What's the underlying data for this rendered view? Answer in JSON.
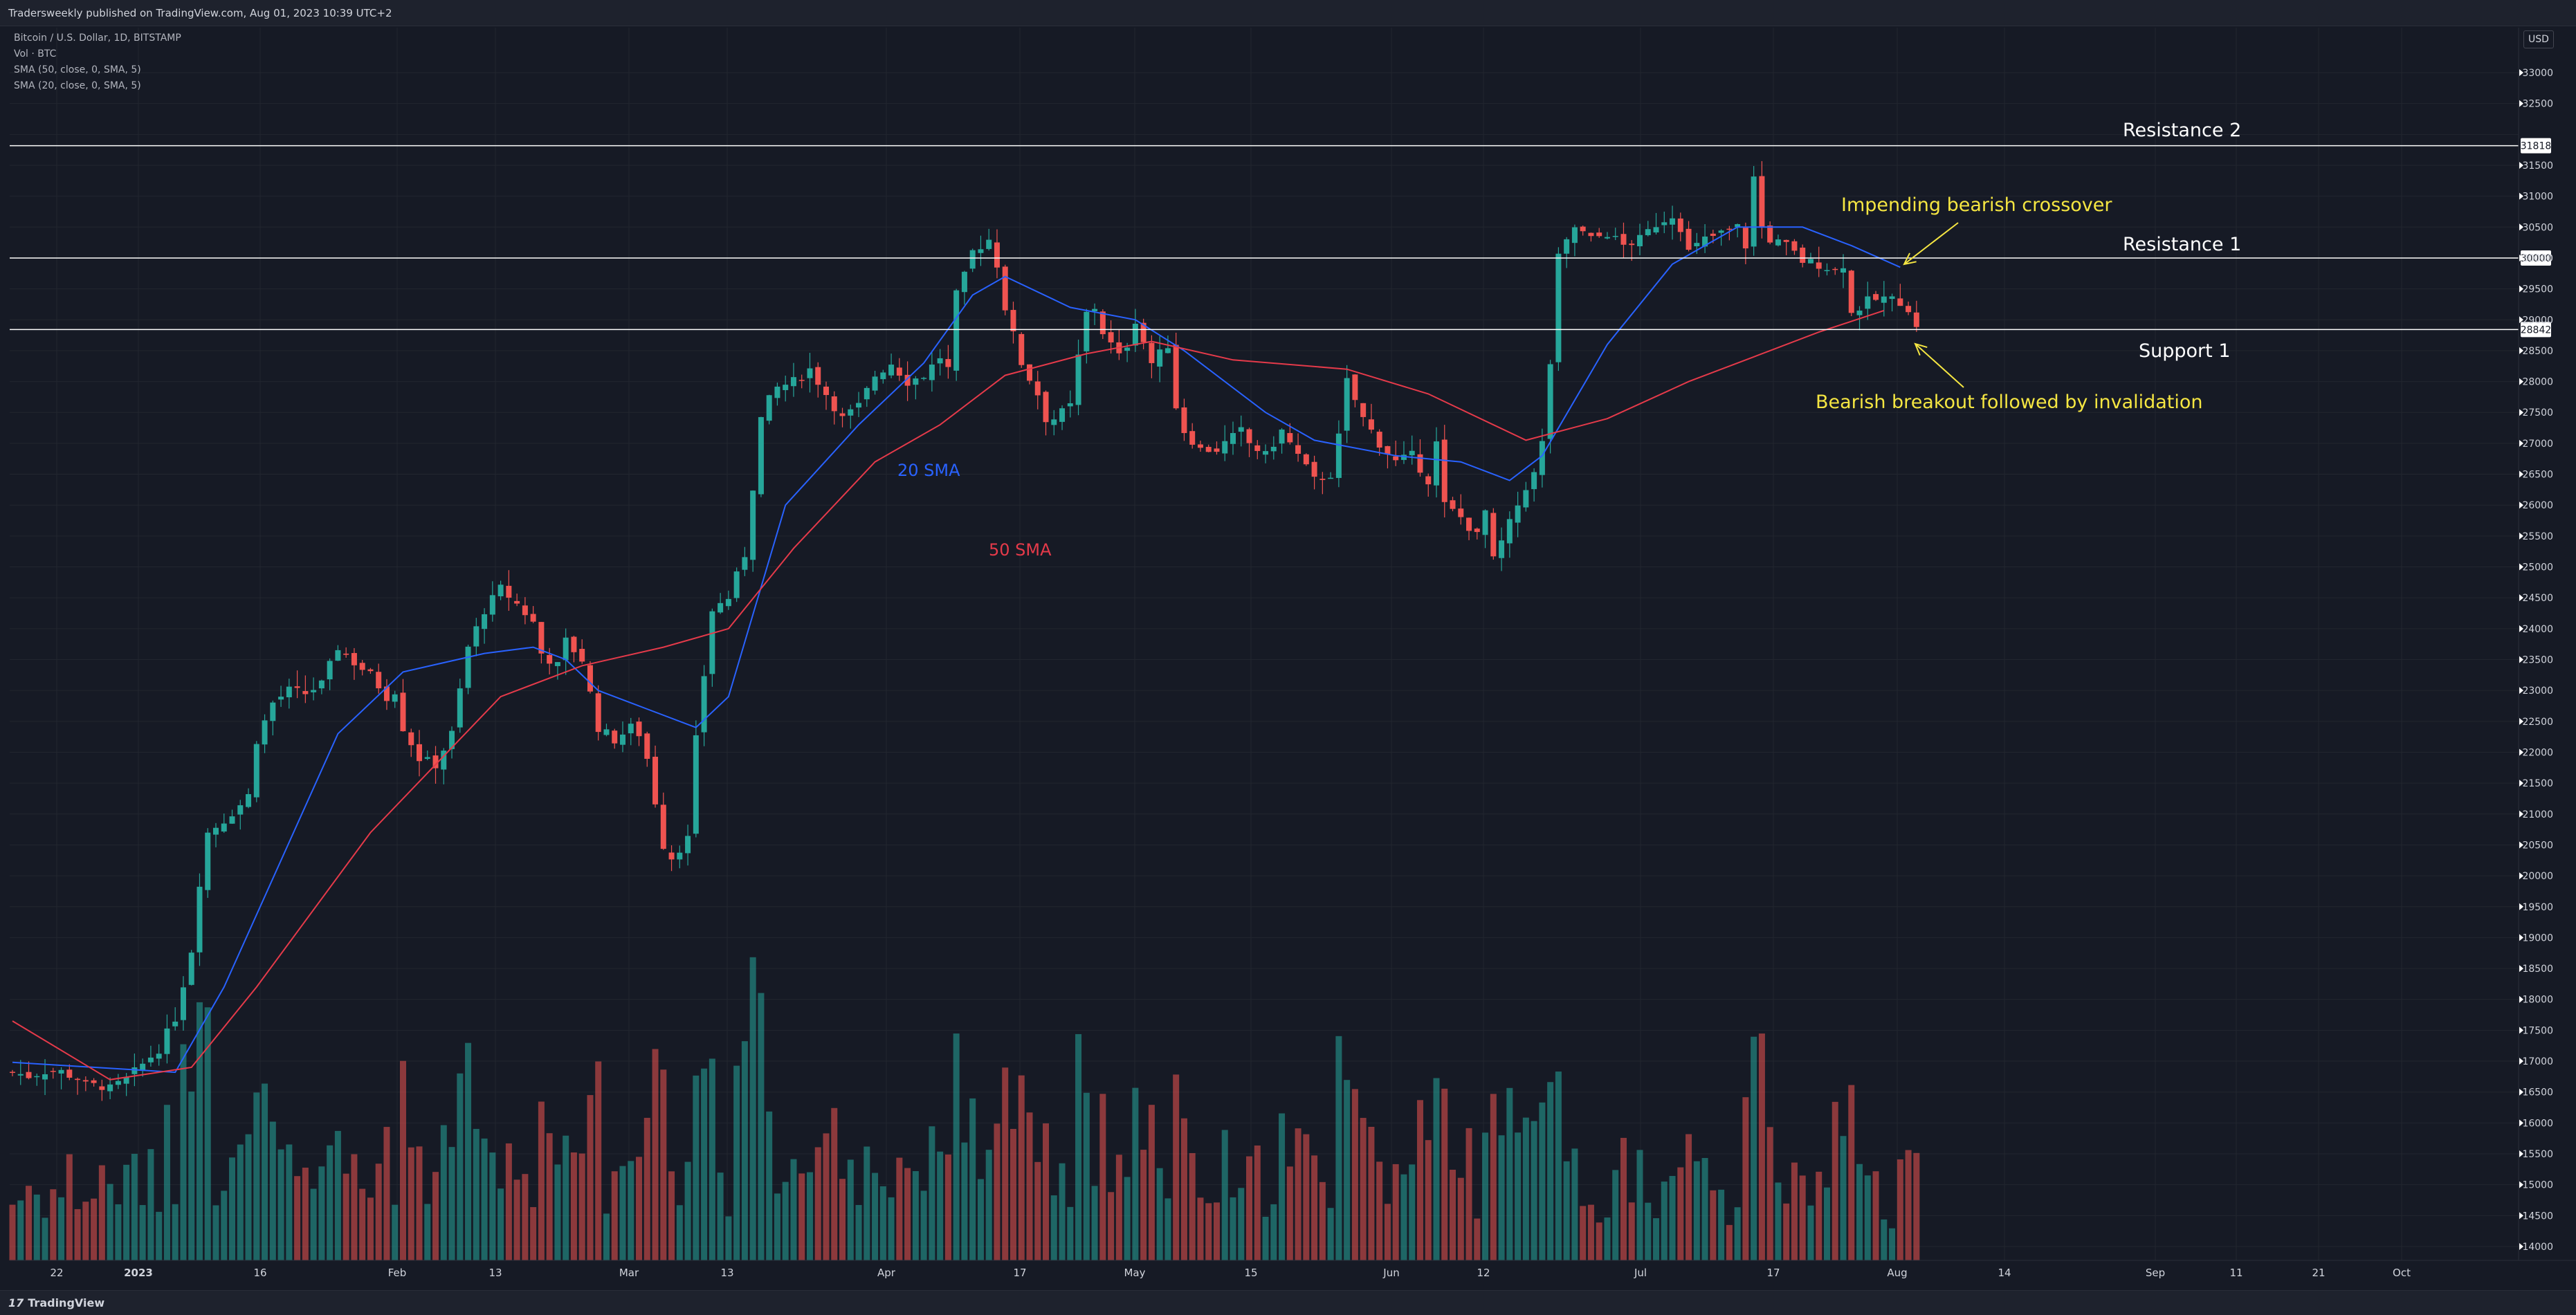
{
  "header": {
    "published": "Tradersweekly published on TradingView.com, Aug 01, 2023 10:39 UTC+2"
  },
  "legend": {
    "symbol": "Bitcoin / U.S. Dollar, 1D, BITSTAMP",
    "volume": "Vol · BTC",
    "sma50": "SMA (50, close, 0, SMA, 5)",
    "sma20": "SMA (20, close, 0, SMA, 5)"
  },
  "currency_button": "USD",
  "footer": {
    "brand": "TradingView",
    "brand_mark": "17"
  },
  "colors": {
    "background": "#161a25",
    "up": "#26a69a",
    "down": "#ef5350",
    "sma20": "#2962ff",
    "sma50": "#e53a4a",
    "annotation": "#f5e642",
    "level_line": "#ffffff"
  },
  "annotations": {
    "resistance2": "Resistance 2",
    "resistance1": "Resistance 1",
    "support1": "Support 1",
    "crossover": "Impending bearish crossover",
    "invalidation": "Bearish breakout followed by invalidation",
    "sma20_label": "20 SMA",
    "sma50_label": "50 SMA"
  },
  "chart_data": {
    "type": "candlestick",
    "symbol": "BTCUSD",
    "interval": "1D",
    "ylim": [
      13900,
      33400
    ],
    "y_ticks": [
      14000,
      14500,
      15000,
      15500,
      16000,
      16500,
      17000,
      17500,
      18000,
      18500,
      19000,
      19500,
      20000,
      20500,
      21000,
      21500,
      22000,
      22500,
      23000,
      23500,
      24000,
      24500,
      25000,
      25500,
      26000,
      26500,
      27000,
      27500,
      28000,
      28500,
      29000,
      29500,
      30000,
      30500,
      31000,
      31500,
      32000,
      32500,
      33000
    ],
    "x_labels": [
      "22",
      "2023",
      "16",
      "Feb",
      "13",
      "Mar",
      "13",
      "Apr",
      "17",
      "May",
      "15",
      "Jun",
      "12",
      "Jul",
      "17",
      "Aug",
      "14",
      "Sep",
      "11",
      "21",
      "Oct"
    ],
    "levels": [
      {
        "label": "Resistance 2",
        "value": 31818
      },
      {
        "label": "Resistance 1",
        "value": 30000
      },
      {
        "label": "Support 1",
        "value": 28842
      }
    ],
    "close_path": [
      [
        0,
        16820
      ],
      [
        2,
        16760
      ],
      [
        4,
        16840
      ],
      [
        6,
        16830
      ],
      [
        8,
        16720
      ],
      [
        9,
        16610
      ],
      [
        11,
        16600
      ],
      [
        12,
        16550
      ],
      [
        14,
        16700
      ],
      [
        16,
        16950
      ],
      [
        18,
        17200
      ],
      [
        20,
        17700
      ],
      [
        22,
        18800
      ],
      [
        23,
        19900
      ],
      [
        24,
        20700
      ],
      [
        26,
        20900
      ],
      [
        28,
        21150
      ],
      [
        29,
        21300
      ],
      [
        30,
        22200
      ],
      [
        32,
        22800
      ],
      [
        34,
        23000
      ],
      [
        36,
        22950
      ],
      [
        38,
        23100
      ],
      [
        40,
        23700
      ],
      [
        42,
        23450
      ],
      [
        44,
        23250
      ],
      [
        46,
        22900
      ],
      [
        47,
        23000
      ],
      [
        48,
        22400
      ],
      [
        50,
        21900
      ],
      [
        52,
        21800
      ],
      [
        54,
        22300
      ],
      [
        56,
        23700
      ],
      [
        58,
        24300
      ],
      [
        60,
        24650
      ],
      [
        62,
        24400
      ],
      [
        64,
        24100
      ],
      [
        65,
        23600
      ],
      [
        67,
        23400
      ],
      [
        68,
        23800
      ],
      [
        70,
        23500
      ],
      [
        72,
        22400
      ],
      [
        74,
        22200
      ],
      [
        76,
        22400
      ],
      [
        77,
        22300
      ],
      [
        78,
        21900
      ],
      [
        80,
        20500
      ],
      [
        81,
        20300
      ],
      [
        83,
        20600
      ],
      [
        84,
        22200
      ],
      [
        86,
        24300
      ],
      [
        88,
        24500
      ],
      [
        90,
        25200
      ],
      [
        92,
        27400
      ],
      [
        93,
        27700
      ],
      [
        94,
        27900
      ],
      [
        96,
        28000
      ],
      [
        98,
        28200
      ],
      [
        100,
        27800
      ],
      [
        102,
        27400
      ],
      [
        104,
        27600
      ],
      [
        106,
        28100
      ],
      [
        108,
        28300
      ],
      [
        110,
        28000
      ],
      [
        112,
        28100
      ],
      [
        114,
        28400
      ],
      [
        115,
        28200
      ],
      [
        116,
        29400
      ],
      [
        117,
        29700
      ],
      [
        118,
        30100
      ],
      [
        120,
        30300
      ],
      [
        121,
        29900
      ],
      [
        122,
        29200
      ],
      [
        124,
        28300
      ],
      [
        126,
        27800
      ],
      [
        127,
        27400
      ],
      [
        128,
        27400
      ],
      [
        130,
        27600
      ],
      [
        131,
        28400
      ],
      [
        132,
        29100
      ],
      [
        133,
        29200
      ],
      [
        134,
        28800
      ],
      [
        136,
        28400
      ],
      [
        137,
        28600
      ],
      [
        138,
        29000
      ],
      [
        140,
        28300
      ],
      [
        142,
        28600
      ],
      [
        143,
        27600
      ],
      [
        144,
        27200
      ],
      [
        146,
        26900
      ],
      [
        148,
        26900
      ],
      [
        150,
        27100
      ],
      [
        151,
        27200
      ],
      [
        152,
        27000
      ],
      [
        154,
        26800
      ],
      [
        156,
        27200
      ],
      [
        158,
        26800
      ],
      [
        160,
        26400
      ],
      [
        162,
        26500
      ],
      [
        163,
        27100
      ],
      [
        164,
        28000
      ],
      [
        166,
        27400
      ],
      [
        168,
        27000
      ],
      [
        170,
        26700
      ],
      [
        172,
        26800
      ],
      [
        174,
        26400
      ],
      [
        175,
        27000
      ],
      [
        176,
        26000
      ],
      [
        178,
        25800
      ],
      [
        180,
        25500
      ],
      [
        181,
        25900
      ],
      [
        182,
        25100
      ],
      [
        184,
        25700
      ],
      [
        186,
        26300
      ],
      [
        187,
        26500
      ],
      [
        188,
        27000
      ],
      [
        189,
        28300
      ],
      [
        190,
        30000
      ],
      [
        192,
        30500
      ],
      [
        194,
        30300
      ],
      [
        196,
        30400
      ],
      [
        198,
        30200
      ],
      [
        200,
        30300
      ],
      [
        202,
        30550
      ],
      [
        204,
        30700
      ],
      [
        205,
        30500
      ],
      [
        206,
        30100
      ],
      [
        208,
        30300
      ],
      [
        210,
        30400
      ],
      [
        212,
        30500
      ],
      [
        213,
        30200
      ],
      [
        214,
        31300
      ],
      [
        215,
        30500
      ],
      [
        216,
        30300
      ],
      [
        218,
        30200
      ],
      [
        220,
        29950
      ],
      [
        222,
        29900
      ],
      [
        224,
        29800
      ],
      [
        225,
        29900
      ],
      [
        226,
        29100
      ],
      [
        228,
        29300
      ],
      [
        230,
        29350
      ],
      [
        232,
        29300
      ],
      [
        233,
        29180
      ],
      [
        234,
        28850
      ]
    ],
    "sma20": [
      [
        0,
        16980
      ],
      [
        20,
        16820
      ],
      [
        26,
        18200
      ],
      [
        40,
        22300
      ],
      [
        48,
        23300
      ],
      [
        58,
        23600
      ],
      [
        64,
        23700
      ],
      [
        68,
        23500
      ],
      [
        72,
        23000
      ],
      [
        78,
        22700
      ],
      [
        84,
        22400
      ],
      [
        88,
        22900
      ],
      [
        95,
        26000
      ],
      [
        104,
        27300
      ],
      [
        112,
        28300
      ],
      [
        118,
        29400
      ],
      [
        122,
        29700
      ],
      [
        130,
        29200
      ],
      [
        138,
        29000
      ],
      [
        144,
        28500
      ],
      [
        154,
        27500
      ],
      [
        160,
        27050
      ],
      [
        170,
        26800
      ],
      [
        178,
        26700
      ],
      [
        184,
        26400
      ],
      [
        188,
        26800
      ],
      [
        196,
        28600
      ],
      [
        204,
        29900
      ],
      [
        212,
        30500
      ],
      [
        220,
        30500
      ],
      [
        226,
        30200
      ],
      [
        232,
        29850
      ]
    ],
    "sma50": [
      [
        0,
        17650
      ],
      [
        12,
        16700
      ],
      [
        22,
        16900
      ],
      [
        30,
        18200
      ],
      [
        44,
        20700
      ],
      [
        60,
        22900
      ],
      [
        70,
        23400
      ],
      [
        80,
        23700
      ],
      [
        88,
        24000
      ],
      [
        96,
        25300
      ],
      [
        106,
        26700
      ],
      [
        114,
        27300
      ],
      [
        122,
        28100
      ],
      [
        132,
        28450
      ],
      [
        140,
        28650
      ],
      [
        150,
        28350
      ],
      [
        164,
        28200
      ],
      [
        174,
        27800
      ],
      [
        186,
        27050
      ],
      [
        196,
        27400
      ],
      [
        206,
        28000
      ],
      [
        214,
        28400
      ],
      [
        222,
        28800
      ],
      [
        230,
        29150
      ]
    ],
    "volume_range": [
      0,
      100
    ]
  }
}
